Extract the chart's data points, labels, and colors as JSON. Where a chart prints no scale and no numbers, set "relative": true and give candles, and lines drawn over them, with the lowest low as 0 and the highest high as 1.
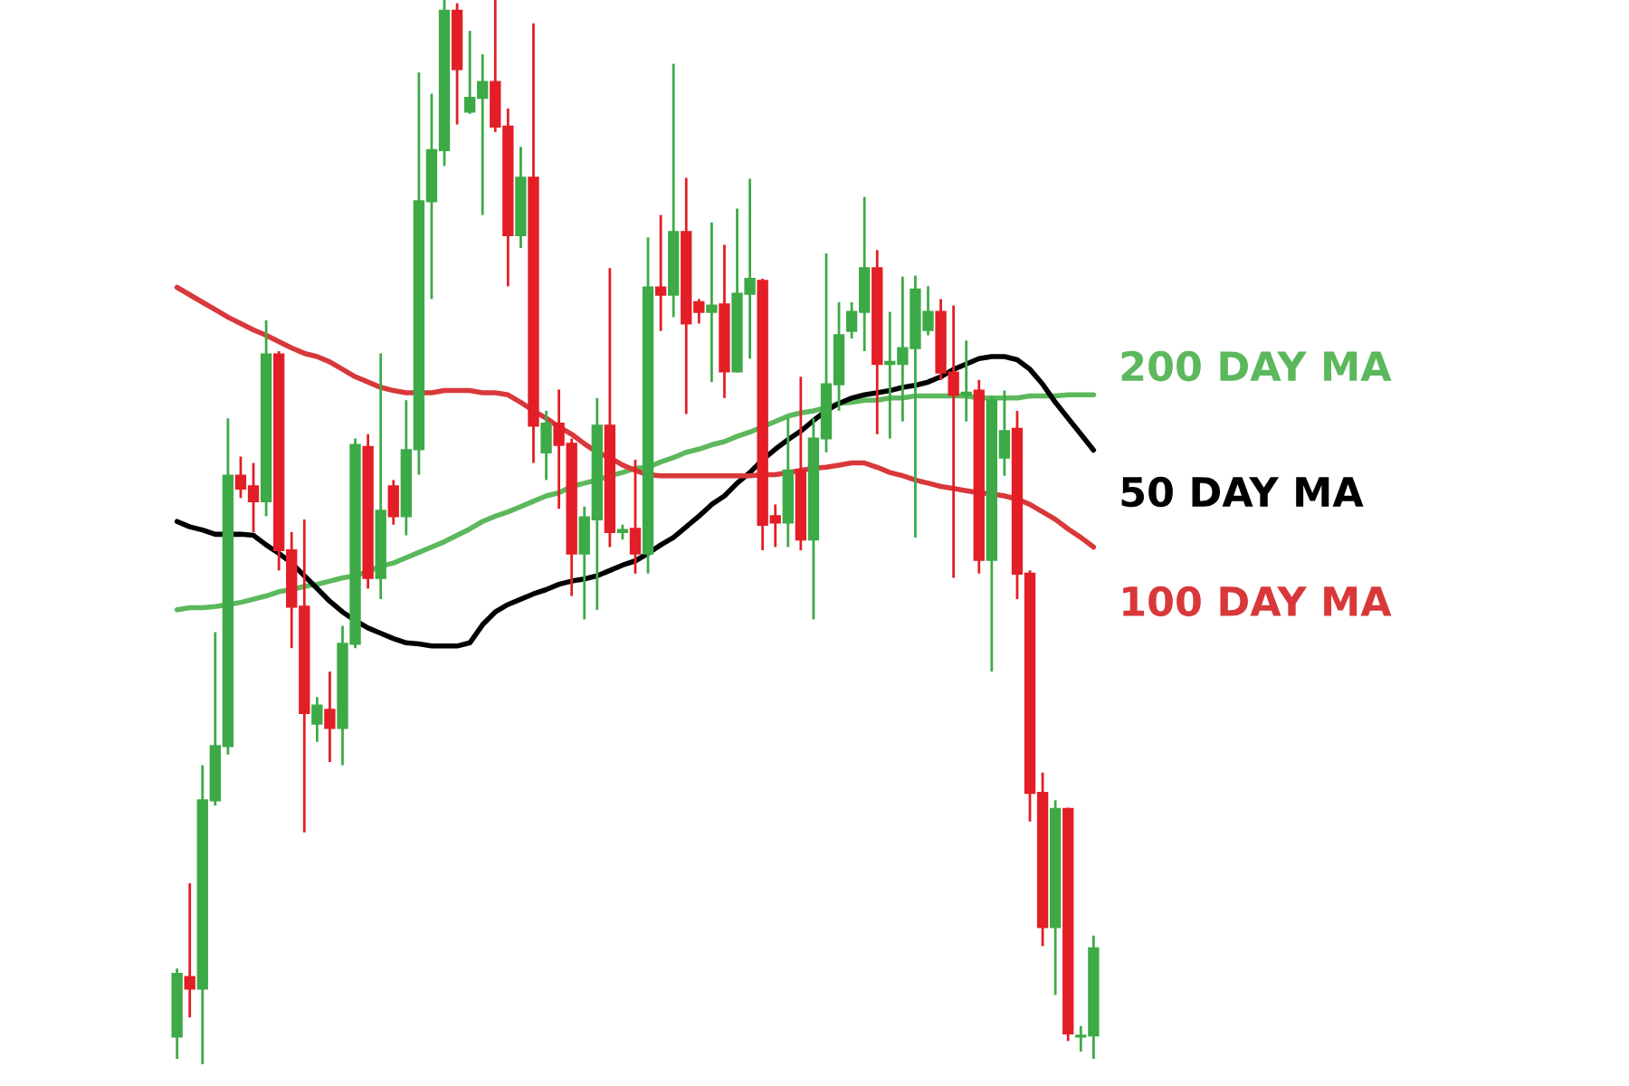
{
  "chart_data": {
    "type": "candlestick",
    "relative": true,
    "categories": [
      null,
      null,
      null,
      null,
      null,
      null,
      null,
      null,
      null,
      null,
      null,
      null,
      null,
      null,
      null,
      null,
      null,
      null,
      null,
      null,
      null,
      null,
      null,
      null,
      null,
      null,
      null,
      null,
      null,
      null,
      null,
      null,
      null,
      null,
      null,
      null,
      null,
      null,
      null,
      null,
      null,
      null,
      null,
      null,
      null,
      null,
      null,
      null,
      null,
      null,
      null,
      null,
      null,
      null,
      null,
      null,
      null,
      null,
      null,
      null,
      null,
      null,
      null,
      null,
      null,
      null,
      null,
      null,
      null,
      null,
      null,
      null,
      null
    ],
    "ohlc": [
      [
        0.026,
        0.09,
        0.005,
        0.085
      ],
      [
        0.082,
        0.17,
        0.044,
        0.071
      ],
      [
        0.071,
        0.281,
        0.0,
        0.248
      ],
      [
        0.248,
        0.406,
        0.243,
        0.299
      ],
      [
        0.299,
        0.607,
        0.291,
        0.553
      ],
      [
        0.553,
        0.571,
        0.532,
        0.541
      ],
      [
        0.543,
        0.565,
        0.5,
        0.529
      ],
      [
        0.529,
        0.699,
        0.515,
        0.667
      ],
      [
        0.667,
        0.67,
        0.464,
        0.483
      ],
      [
        0.483,
        0.5,
        0.391,
        0.43
      ],
      [
        0.43,
        0.512,
        0.218,
        0.33
      ],
      [
        0.32,
        0.345,
        0.303,
        0.337
      ],
      [
        0.333,
        0.369,
        0.284,
        0.316
      ],
      [
        0.316,
        0.412,
        0.281,
        0.395
      ],
      [
        0.395,
        0.588,
        0.391,
        0.582
      ],
      [
        0.58,
        0.592,
        0.447,
        0.457
      ],
      [
        0.457,
        0.668,
        0.437,
        0.52
      ],
      [
        0.543,
        0.549,
        0.507,
        0.515
      ],
      [
        0.515,
        0.624,
        0.497,
        0.577
      ],
      [
        0.578,
        0.932,
        0.554,
        0.811
      ],
      [
        0.811,
        0.912,
        0.719,
        0.859
      ],
      [
        0.859,
        1.0,
        0.844,
        0.99
      ],
      [
        0.99,
        0.997,
        0.883,
        0.935
      ],
      [
        0.895,
        0.971,
        0.893,
        0.908
      ],
      [
        0.908,
        0.949,
        0.798,
        0.923
      ],
      [
        0.923,
        1.0,
        0.876,
        0.881
      ],
      [
        0.881,
        0.898,
        0.731,
        0.779
      ],
      [
        0.779,
        0.862,
        0.767,
        0.833
      ],
      [
        0.833,
        0.978,
        0.565,
        0.6
      ],
      [
        0.575,
        0.614,
        0.549,
        0.602
      ],
      [
        0.602,
        0.634,
        0.522,
        0.582
      ],
      [
        0.583,
        0.588,
        0.44,
        0.48
      ],
      [
        0.48,
        0.524,
        0.418,
        0.514
      ],
      [
        0.512,
        0.626,
        0.427,
        0.6
      ],
      [
        0.6,
        0.748,
        0.486,
        0.5
      ],
      [
        0.5,
        0.507,
        0.493,
        0.502
      ],
      [
        0.503,
        0.568,
        0.461,
        0.48
      ],
      [
        0.48,
        0.777,
        0.461,
        0.73
      ],
      [
        0.73,
        0.798,
        0.689,
        0.723
      ],
      [
        0.723,
        0.94,
        0.702,
        0.782
      ],
      [
        0.782,
        0.833,
        0.611,
        0.696
      ],
      [
        0.716,
        0.719,
        0.696,
        0.707
      ],
      [
        0.707,
        0.791,
        0.641,
        0.713
      ],
      [
        0.714,
        0.77,
        0.626,
        0.651
      ],
      [
        0.651,
        0.804,
        0.65,
        0.724
      ],
      [
        0.724,
        0.832,
        0.663,
        0.738
      ],
      [
        0.736,
        0.738,
        0.483,
        0.507
      ],
      [
        0.515,
        0.526,
        0.486,
        0.509
      ],
      [
        0.509,
        0.607,
        0.486,
        0.558
      ],
      [
        0.558,
        0.646,
        0.483,
        0.493
      ],
      [
        0.493,
        0.607,
        0.418,
        0.588
      ],
      [
        0.588,
        0.762,
        0.575,
        0.639
      ],
      [
        0.639,
        0.716,
        0.614,
        0.685
      ],
      [
        0.689,
        0.716,
        0.682,
        0.707
      ],
      [
        0.707,
        0.815,
        0.67,
        0.748
      ],
      [
        0.748,
        0.765,
        0.592,
        0.658
      ],
      [
        0.658,
        0.707,
        0.588,
        0.66
      ],
      [
        0.658,
        0.74,
        0.604,
        0.673
      ],
      [
        0.673,
        0.741,
        0.495,
        0.728
      ],
      [
        0.69,
        0.731,
        0.685,
        0.707
      ],
      [
        0.707,
        0.719,
        0.643,
        0.65
      ],
      [
        0.65,
        0.713,
        0.457,
        0.629
      ],
      [
        0.629,
        0.68,
        0.604,
        0.631
      ],
      [
        0.633,
        0.643,
        0.461,
        0.474
      ],
      [
        0.474,
        0.628,
        0.369,
        0.624
      ],
      [
        0.57,
        0.633,
        0.553,
        0.595
      ],
      [
        0.597,
        0.614,
        0.437,
        0.461
      ],
      [
        0.461,
        0.464,
        0.228,
        0.255
      ],
      [
        0.255,
        0.274,
        0.111,
        0.129
      ],
      [
        0.129,
        0.248,
        0.065,
        0.24
      ],
      [
        0.24,
        0.241,
        0.022,
        0.029
      ],
      [
        0.027,
        0.036,
        0.012,
        0.026
      ],
      [
        0.027,
        0.121,
        0.005,
        0.109
      ]
    ],
    "colors": [
      "#3daa47",
      "#e31e26",
      "#3daa47",
      "#3daa47",
      "#3daa47",
      "#e31e26",
      "#e31e26",
      "#3daa47",
      "#e31e26",
      "#e31e26",
      "#e31e26",
      "#3daa47",
      "#e31e26",
      "#3daa47",
      "#3daa47",
      "#e31e26",
      "#3daa47",
      "#e31e26",
      "#3daa47",
      "#3daa47",
      "#3daa47",
      "#3daa47",
      "#e31e26",
      "#3daa47",
      "#3daa47",
      "#e31e26",
      "#e31e26",
      "#3daa47",
      "#e31e26",
      "#3daa47",
      "#e31e26",
      "#e31e26",
      "#3daa47",
      "#3daa47",
      "#e31e26",
      "#3daa47",
      "#e31e26",
      "#3daa47",
      "#e31e26",
      "#3daa47",
      "#e31e26",
      "#e31e26",
      "#3daa47",
      "#e31e26",
      "#3daa47",
      "#3daa47",
      "#e31e26",
      "#e31e26",
      "#3daa47",
      "#e31e26",
      "#3daa47",
      "#3daa47",
      "#3daa47",
      "#3daa47",
      "#3daa47",
      "#e31e26",
      "#3daa47",
      "#3daa47",
      "#3daa47",
      "#3daa47",
      "#e31e26",
      "#e31e26",
      "#3daa47",
      "#e31e26",
      "#3daa47",
      "#3daa47",
      "#e31e26",
      "#e31e26",
      "#e31e26",
      "#3daa47",
      "#e31e26",
      "#3daa47",
      "#3daa47"
    ],
    "series": [
      {
        "name": "200 DAY MA",
        "type": "line",
        "color": "#5cb85c",
        "values": [
          0.427,
          0.429,
          0.429,
          0.43,
          0.432,
          0.434,
          0.437,
          0.44,
          0.444,
          0.446,
          0.449,
          0.451,
          0.454,
          0.457,
          0.459,
          0.463,
          0.468,
          0.471,
          0.476,
          0.481,
          0.486,
          0.491,
          0.497,
          0.503,
          0.51,
          0.515,
          0.519,
          0.524,
          0.529,
          0.534,
          0.537,
          0.543,
          0.546,
          0.549,
          0.553,
          0.556,
          0.56,
          0.561,
          0.566,
          0.57,
          0.575,
          0.578,
          0.582,
          0.585,
          0.59,
          0.594,
          0.599,
          0.604,
          0.609,
          0.612,
          0.614,
          0.617,
          0.621,
          0.622,
          0.624,
          0.624,
          0.626,
          0.626,
          0.628,
          0.628,
          0.628,
          0.628,
          0.628,
          0.626,
          0.626,
          0.626,
          0.626,
          0.628,
          0.628,
          0.628,
          0.629,
          0.629,
          0.629
        ]
      },
      {
        "name": "50 DAY MA",
        "type": "line",
        "color": "#000000",
        "values": [
          0.51,
          0.505,
          0.502,
          0.498,
          0.498,
          0.498,
          0.497,
          0.488,
          0.48,
          0.471,
          0.459,
          0.447,
          0.435,
          0.425,
          0.417,
          0.41,
          0.405,
          0.4,
          0.396,
          0.395,
          0.393,
          0.393,
          0.393,
          0.396,
          0.413,
          0.425,
          0.432,
          0.437,
          0.442,
          0.446,
          0.451,
          0.454,
          0.456,
          0.459,
          0.464,
          0.469,
          0.473,
          0.48,
          0.488,
          0.495,
          0.505,
          0.515,
          0.526,
          0.534,
          0.546,
          0.556,
          0.568,
          0.578,
          0.587,
          0.595,
          0.605,
          0.614,
          0.621,
          0.626,
          0.629,
          0.631,
          0.633,
          0.636,
          0.638,
          0.641,
          0.646,
          0.653,
          0.658,
          0.663,
          0.665,
          0.665,
          0.662,
          0.653,
          0.639,
          0.622,
          0.607,
          0.592,
          0.577
        ]
      },
      {
        "name": "100 DAY MA",
        "type": "line",
        "color": "#d9383a",
        "values": [
          0.73,
          0.723,
          0.716,
          0.709,
          0.702,
          0.696,
          0.69,
          0.685,
          0.679,
          0.673,
          0.668,
          0.665,
          0.66,
          0.653,
          0.646,
          0.641,
          0.636,
          0.633,
          0.631,
          0.631,
          0.631,
          0.633,
          0.633,
          0.633,
          0.631,
          0.631,
          0.629,
          0.622,
          0.614,
          0.607,
          0.599,
          0.592,
          0.583,
          0.575,
          0.57,
          0.563,
          0.558,
          0.554,
          0.553,
          0.553,
          0.553,
          0.553,
          0.553,
          0.553,
          0.553,
          0.553,
          0.554,
          0.554,
          0.556,
          0.558,
          0.56,
          0.561,
          0.563,
          0.565,
          0.565,
          0.561,
          0.556,
          0.553,
          0.549,
          0.546,
          0.543,
          0.541,
          0.539,
          0.537,
          0.536,
          0.534,
          0.531,
          0.526,
          0.519,
          0.512,
          0.503,
          0.495,
          0.486
        ]
      }
    ]
  }
}
